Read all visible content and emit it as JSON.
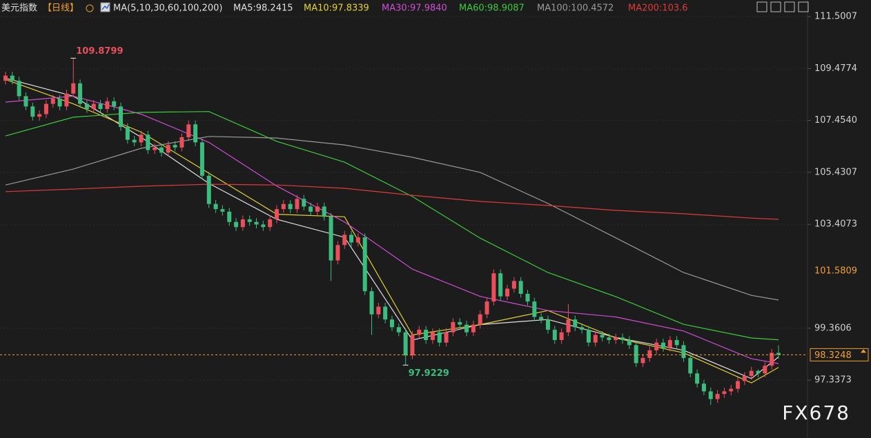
{
  "chart_data": {
    "type": "candlestick",
    "title": "美元指数",
    "period": "【日线】",
    "ma_label": "MA(5,10,30,60,100,200)",
    "watermark": "FX678",
    "ylim": [
      95.083,
      112.146
    ],
    "yticks": [
      111.5007,
      109.4774,
      {
        "value": 107.454,
        "label": "107.4540"
      },
      105.4307,
      103.4073,
      99.3606,
      97.3373
    ],
    "axis_marker": 101.5809,
    "grid": true,
    "up_color": "#e8505b",
    "down_color": "#3dbd7d",
    "open": [
      109.0,
      109.2,
      109.0,
      108.4,
      108.0,
      107.6,
      107.7,
      108.1,
      108.3,
      108.0,
      108.5,
      108.9,
      108.1,
      107.9,
      108.1,
      107.9,
      108.2,
      108.0,
      107.2,
      106.7,
      106.6,
      106.9,
      106.3,
      106.4,
      106.2,
      106.5,
      106.4,
      106.8,
      107.3,
      106.6,
      105.3,
      104.2,
      104.0,
      103.9,
      103.5,
      103.3,
      103.6,
      103.5,
      103.4,
      103.3,
      103.6,
      104.0,
      104.2,
      104.0,
      104.4,
      104.1,
      103.9,
      104.1,
      103.7,
      102.0,
      102.6,
      103.0,
      102.7,
      102.9,
      100.8,
      99.9,
      100.2,
      99.7,
      99.4,
      99.2,
      98.3,
      99.1,
      99.3,
      98.9,
      99.2,
      98.8,
      99.2,
      99.6,
      99.5,
      99.2,
      99.5,
      99.9,
      100.4,
      101.5,
      100.6,
      100.9,
      101.2,
      100.7,
      100.4,
      99.8,
      99.7,
      99.3,
      98.9,
      99.2,
      99.7,
      99.4,
      99.3,
      98.8,
      99.1,
      99.0,
      98.9,
      99.0,
      98.9,
      98.7,
      98.0,
      98.2,
      98.5,
      98.8,
      98.6,
      98.9,
      98.7,
      98.2,
      97.6,
      97.2,
      96.9,
      96.6,
      96.8,
      96.9,
      97.0,
      97.3,
      97.5,
      97.7,
      97.6,
      97.9,
      98.4
    ],
    "high": [
      109.35,
      109.35,
      109.15,
      108.55,
      108.15,
      107.85,
      108.25,
      108.45,
      108.45,
      108.65,
      109.8799,
      109.05,
      108.25,
      108.25,
      108.25,
      108.35,
      108.35,
      108.15,
      107.35,
      106.85,
      107.05,
      107.05,
      106.55,
      106.55,
      106.65,
      106.65,
      106.95,
      107.45,
      107.45,
      106.75,
      105.45,
      104.35,
      104.15,
      104.05,
      103.65,
      103.75,
      103.75,
      103.65,
      103.55,
      103.75,
      104.15,
      104.35,
      104.35,
      104.55,
      104.55,
      104.25,
      104.25,
      104.25,
      103.85,
      102.75,
      103.15,
      103.15,
      103.05,
      103.05,
      100.95,
      100.35,
      100.35,
      99.85,
      99.55,
      99.35,
      99.25,
      99.45,
      99.45,
      99.35,
      99.35,
      99.35,
      99.75,
      99.75,
      99.65,
      99.65,
      100.05,
      100.55,
      101.65,
      101.65,
      101.05,
      101.35,
      101.35,
      100.85,
      100.55,
      99.95,
      99.85,
      99.45,
      99.35,
      100.3,
      99.85,
      99.55,
      99.45,
      99.25,
      99.25,
      99.15,
      99.15,
      99.15,
      99.05,
      98.85,
      98.35,
      98.65,
      98.95,
      98.95,
      99.05,
      99.05,
      98.85,
      98.35,
      97.75,
      97.35,
      97.05,
      96.95,
      97.05,
      97.15,
      97.45,
      97.65,
      97.85,
      97.75,
      98.05,
      98.55,
      98.7
    ],
    "low": [
      108.85,
      108.85,
      108.25,
      107.85,
      107.45,
      107.45,
      107.55,
      107.95,
      107.85,
      107.85,
      108.35,
      107.95,
      107.75,
      107.75,
      107.75,
      107.75,
      107.85,
      107.05,
      106.55,
      106.45,
      106.45,
      106.15,
      106.15,
      106.05,
      106.05,
      106.25,
      106.25,
      106.65,
      106.45,
      105.15,
      104.05,
      103.85,
      103.75,
      103.35,
      103.15,
      103.15,
      103.35,
      103.25,
      103.15,
      103.15,
      103.45,
      103.85,
      103.85,
      103.85,
      103.95,
      103.75,
      103.75,
      103.55,
      101.2,
      101.85,
      102.45,
      102.55,
      102.55,
      100.65,
      99.1,
      99.75,
      99.55,
      99.25,
      99.05,
      97.9229,
      98.15,
      98.95,
      98.75,
      98.75,
      98.65,
      98.65,
      99.05,
      99.35,
      99.05,
      99.05,
      99.35,
      99.75,
      100.25,
      100.45,
      100.45,
      100.75,
      100.55,
      100.25,
      99.65,
      99.55,
      99.15,
      98.75,
      98.75,
      99.05,
      99.25,
      99.15,
      98.65,
      98.65,
      98.85,
      98.75,
      98.75,
      98.75,
      98.55,
      97.85,
      97.85,
      98.05,
      98.35,
      98.45,
      98.45,
      98.55,
      98.05,
      97.45,
      97.05,
      96.75,
      96.3729,
      96.45,
      96.65,
      96.75,
      96.85,
      97.15,
      97.35,
      97.45,
      97.45,
      97.75,
      98.17
    ],
    "close": [
      109.2,
      109.0,
      108.4,
      108.0,
      107.6,
      107.7,
      108.1,
      108.3,
      108.0,
      108.5,
      108.9,
      108.1,
      107.9,
      108.1,
      107.9,
      108.2,
      108.0,
      107.2,
      106.7,
      106.6,
      106.9,
      106.3,
      106.4,
      106.2,
      106.5,
      106.4,
      106.8,
      107.3,
      106.6,
      105.3,
      104.2,
      104.0,
      103.9,
      103.5,
      103.3,
      103.6,
      103.5,
      103.4,
      103.3,
      103.6,
      104.0,
      104.2,
      104.0,
      104.4,
      104.1,
      103.9,
      104.1,
      103.7,
      102.0,
      102.6,
      103.0,
      102.7,
      102.9,
      100.8,
      99.9,
      100.2,
      99.7,
      99.4,
      99.2,
      98.3,
      99.1,
      99.3,
      98.9,
      99.2,
      98.8,
      99.2,
      99.6,
      99.5,
      99.2,
      99.5,
      99.9,
      100.4,
      101.5,
      100.6,
      100.9,
      101.2,
      100.7,
      100.4,
      99.8,
      99.7,
      99.3,
      98.9,
      99.2,
      99.7,
      99.4,
      99.3,
      98.8,
      99.1,
      99.0,
      98.9,
      99.0,
      98.9,
      98.7,
      98.0,
      98.2,
      98.5,
      98.8,
      98.6,
      98.9,
      98.7,
      98.2,
      97.6,
      97.2,
      96.9,
      96.6,
      96.8,
      96.9,
      97.0,
      97.3,
      97.5,
      97.7,
      97.6,
      97.9,
      98.4,
      98.3248
    ],
    "series": [
      {
        "name": "MA5:98.2415",
        "color": "#e0e0e0",
        "x": [
          0,
          10,
          20,
          30,
          40,
          50,
          60,
          70,
          80,
          90,
          100,
          110,
          114
        ],
        "values": [
          109.1,
          108.4,
          106.8,
          105.0,
          103.6,
          102.9,
          98.9,
          99.5,
          99.7,
          99.0,
          98.5,
          97.4,
          98.2415
        ]
      },
      {
        "name": "MA10:97.8339",
        "color": "#e6d234",
        "x": [
          0,
          10,
          20,
          30,
          40,
          50,
          60,
          70,
          80,
          90,
          100,
          110,
          114
        ],
        "values": [
          109.05,
          108.1,
          107.0,
          105.4,
          103.8,
          103.7,
          99.1,
          99.5,
          100.05,
          98.98,
          98.4,
          97.23,
          97.8339
        ]
      },
      {
        "name": "MA30:97.9840",
        "color": "#d24dd6",
        "x": [
          0,
          10,
          20,
          30,
          40,
          50,
          60,
          70,
          80,
          90,
          100,
          110,
          114
        ],
        "values": [
          108.17,
          108.4,
          107.7,
          106.6,
          104.9,
          103.5,
          101.66,
          100.6,
          100.05,
          99.8,
          99.25,
          98.17,
          97.984
        ]
      },
      {
        "name": "MA60:98.9087",
        "color": "#3ccc3c",
        "x": [
          0,
          10,
          20,
          30,
          40,
          50,
          60,
          70,
          80,
          90,
          100,
          110,
          114
        ],
        "values": [
          106.85,
          107.58,
          107.77,
          107.8,
          106.64,
          105.83,
          104.49,
          102.87,
          101.53,
          100.59,
          99.51,
          98.98,
          98.9087
        ]
      },
      {
        "name": "MA100:100.4572",
        "color": "#9a9a9a",
        "x": [
          0,
          10,
          20,
          30,
          40,
          50,
          60,
          70,
          80,
          90,
          100,
          110,
          114
        ],
        "values": [
          104.94,
          105.56,
          106.37,
          106.83,
          106.77,
          106.5,
          106.02,
          105.43,
          104.22,
          102.88,
          101.53,
          100.64,
          100.4572
        ]
      },
      {
        "name": "MA200:103.6",
        "color": "#e23a3a",
        "x": [
          0,
          10,
          20,
          30,
          40,
          50,
          60,
          70,
          80,
          90,
          100,
          110,
          114
        ],
        "values": [
          104.68,
          104.78,
          104.89,
          104.97,
          104.94,
          104.81,
          104.54,
          104.3,
          104.14,
          103.95,
          103.82,
          103.65,
          103.6
        ]
      }
    ]
  }
}
